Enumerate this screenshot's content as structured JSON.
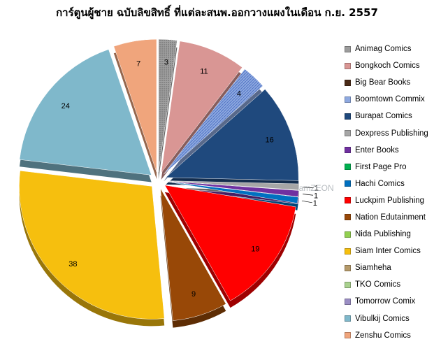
{
  "chart_data": {
    "type": "pie",
    "title": "การ์ตูนผู้ชาย ฉบับลิขสิทธิ์ ที่แต่ละสนพ.ออกวางแผงในเดือน ก.ย. 2557",
    "legend_position": "right",
    "slices": [
      {
        "name": "Animag Comics",
        "value": 3,
        "color": "#9c9c9c"
      },
      {
        "name": "Bongkoch Comics",
        "value": 11,
        "color": "#d99694"
      },
      {
        "name": "Big Bear Books",
        "value": 0,
        "color": "#4a2a16"
      },
      {
        "name": "Boomtown Commix",
        "value": 4,
        "color": "#8ea9e0"
      },
      {
        "name": "Burapat Comics",
        "value": 16,
        "color": "#1f497d"
      },
      {
        "name": "Dexpress Publishing",
        "value": 1,
        "color": "#a6a6a6"
      },
      {
        "name": "Enter Books",
        "value": 1,
        "color": "#7030a0"
      },
      {
        "name": "First Page Pro",
        "value": 0,
        "color": "#00b050"
      },
      {
        "name": "Hachi Comics",
        "value": 1,
        "color": "#0070c0"
      },
      {
        "name": "Luckpim Publishing",
        "value": 19,
        "color": "#ff0000"
      },
      {
        "name": "Nation Edutainment",
        "value": 9,
        "color": "#984807"
      },
      {
        "name": "Nida Publishing",
        "value": 0,
        "color": "#92d050"
      },
      {
        "name": "Siam Inter Comics",
        "value": 38,
        "color": "#f6bf0e"
      },
      {
        "name": "Siamheha",
        "value": 0,
        "color": "#b59a6a"
      },
      {
        "name": "TKO Comics",
        "value": 0,
        "color": "#a9d18e"
      },
      {
        "name": "Tomorrow Comix",
        "value": 0,
        "color": "#9b8ec4"
      },
      {
        "name": "Vibulkij Comics",
        "value": 24,
        "color": "#7fb8cb"
      },
      {
        "name": "Zenshu Comics",
        "value": 7,
        "color": "#f0a57c"
      }
    ]
  },
  "watermark": "iamZEON"
}
